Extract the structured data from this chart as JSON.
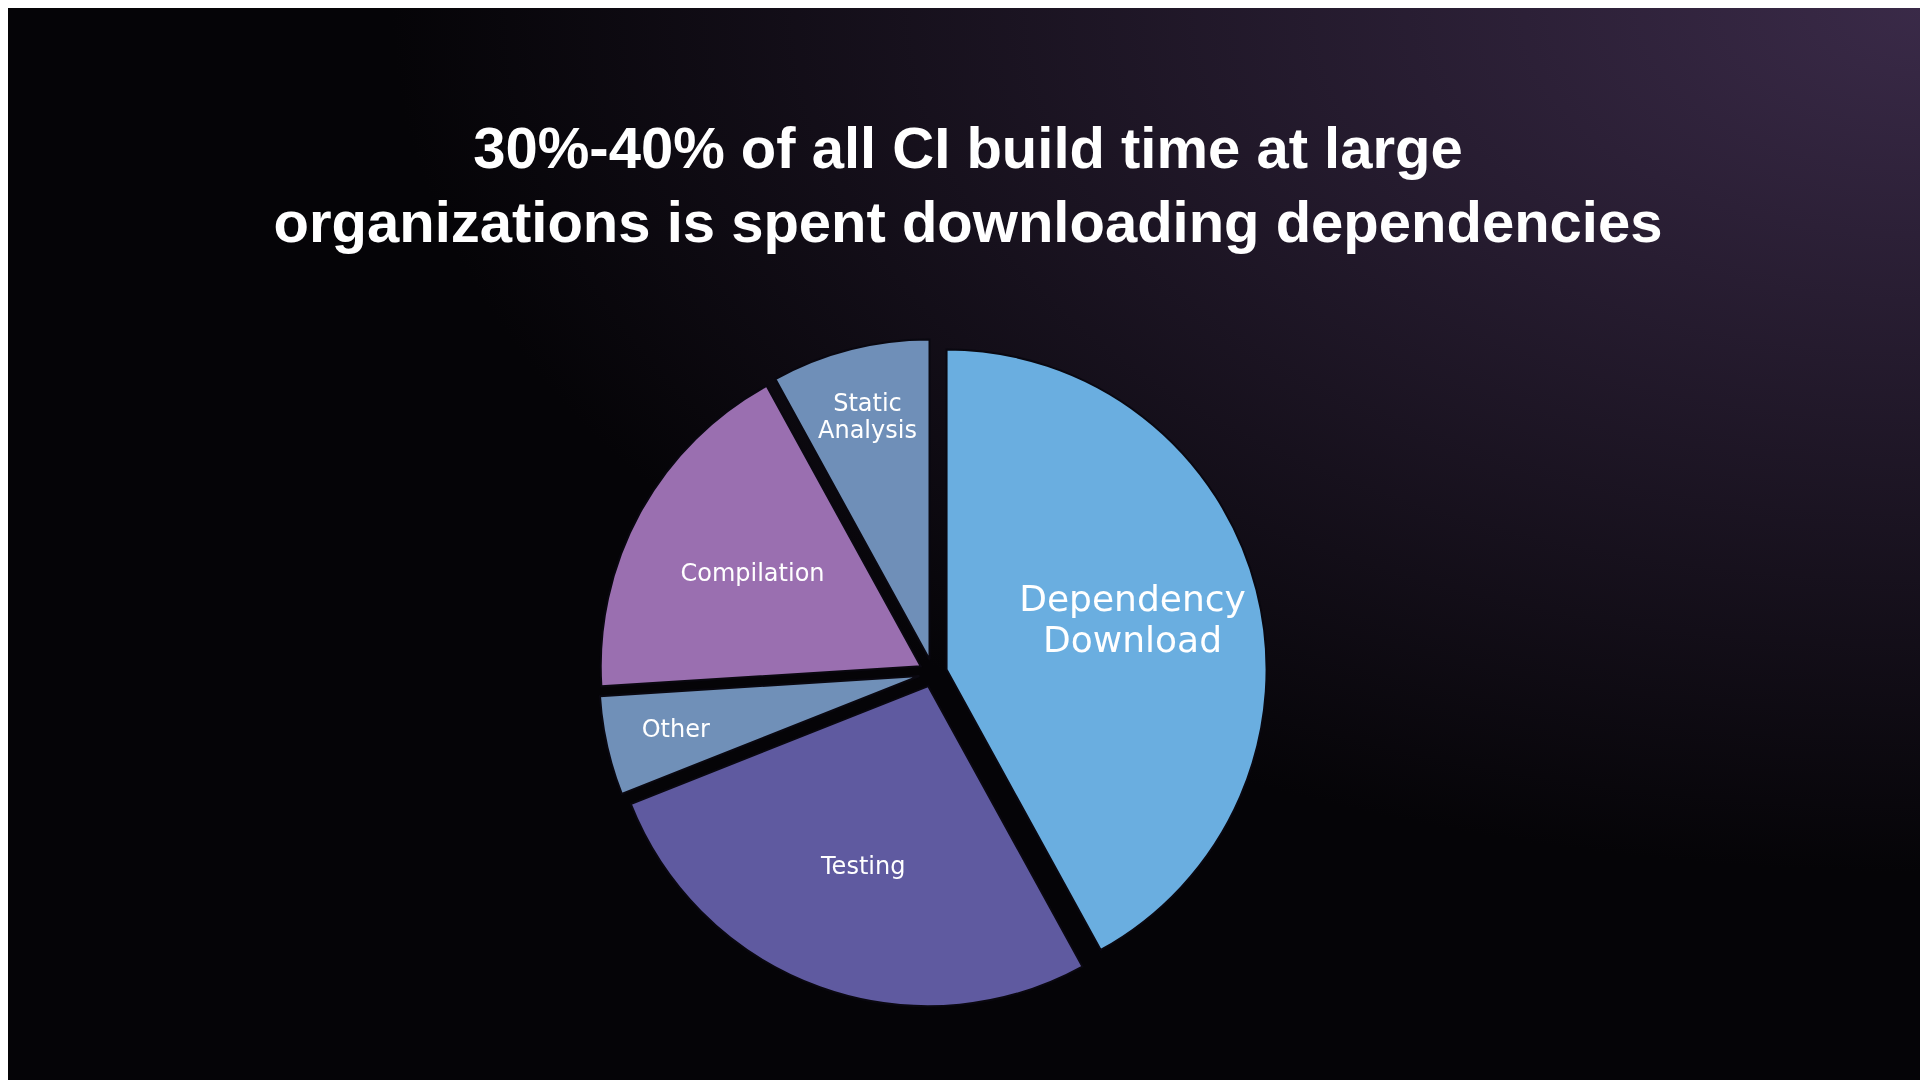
{
  "chart_data": {
    "type": "pie",
    "title": "30%-40% of all CI build time at large organizations is spent downloading dependencies",
    "categories": [
      "Dependency Download",
      "Testing",
      "Other",
      "Compilation",
      "Static Analysis"
    ],
    "values": [
      42,
      27,
      5,
      18,
      8
    ],
    "colors": [
      "#6aaee0",
      "#5f5aa0",
      "#7090b8",
      "#9a6fb0",
      "#6f8fb8"
    ]
  }
}
